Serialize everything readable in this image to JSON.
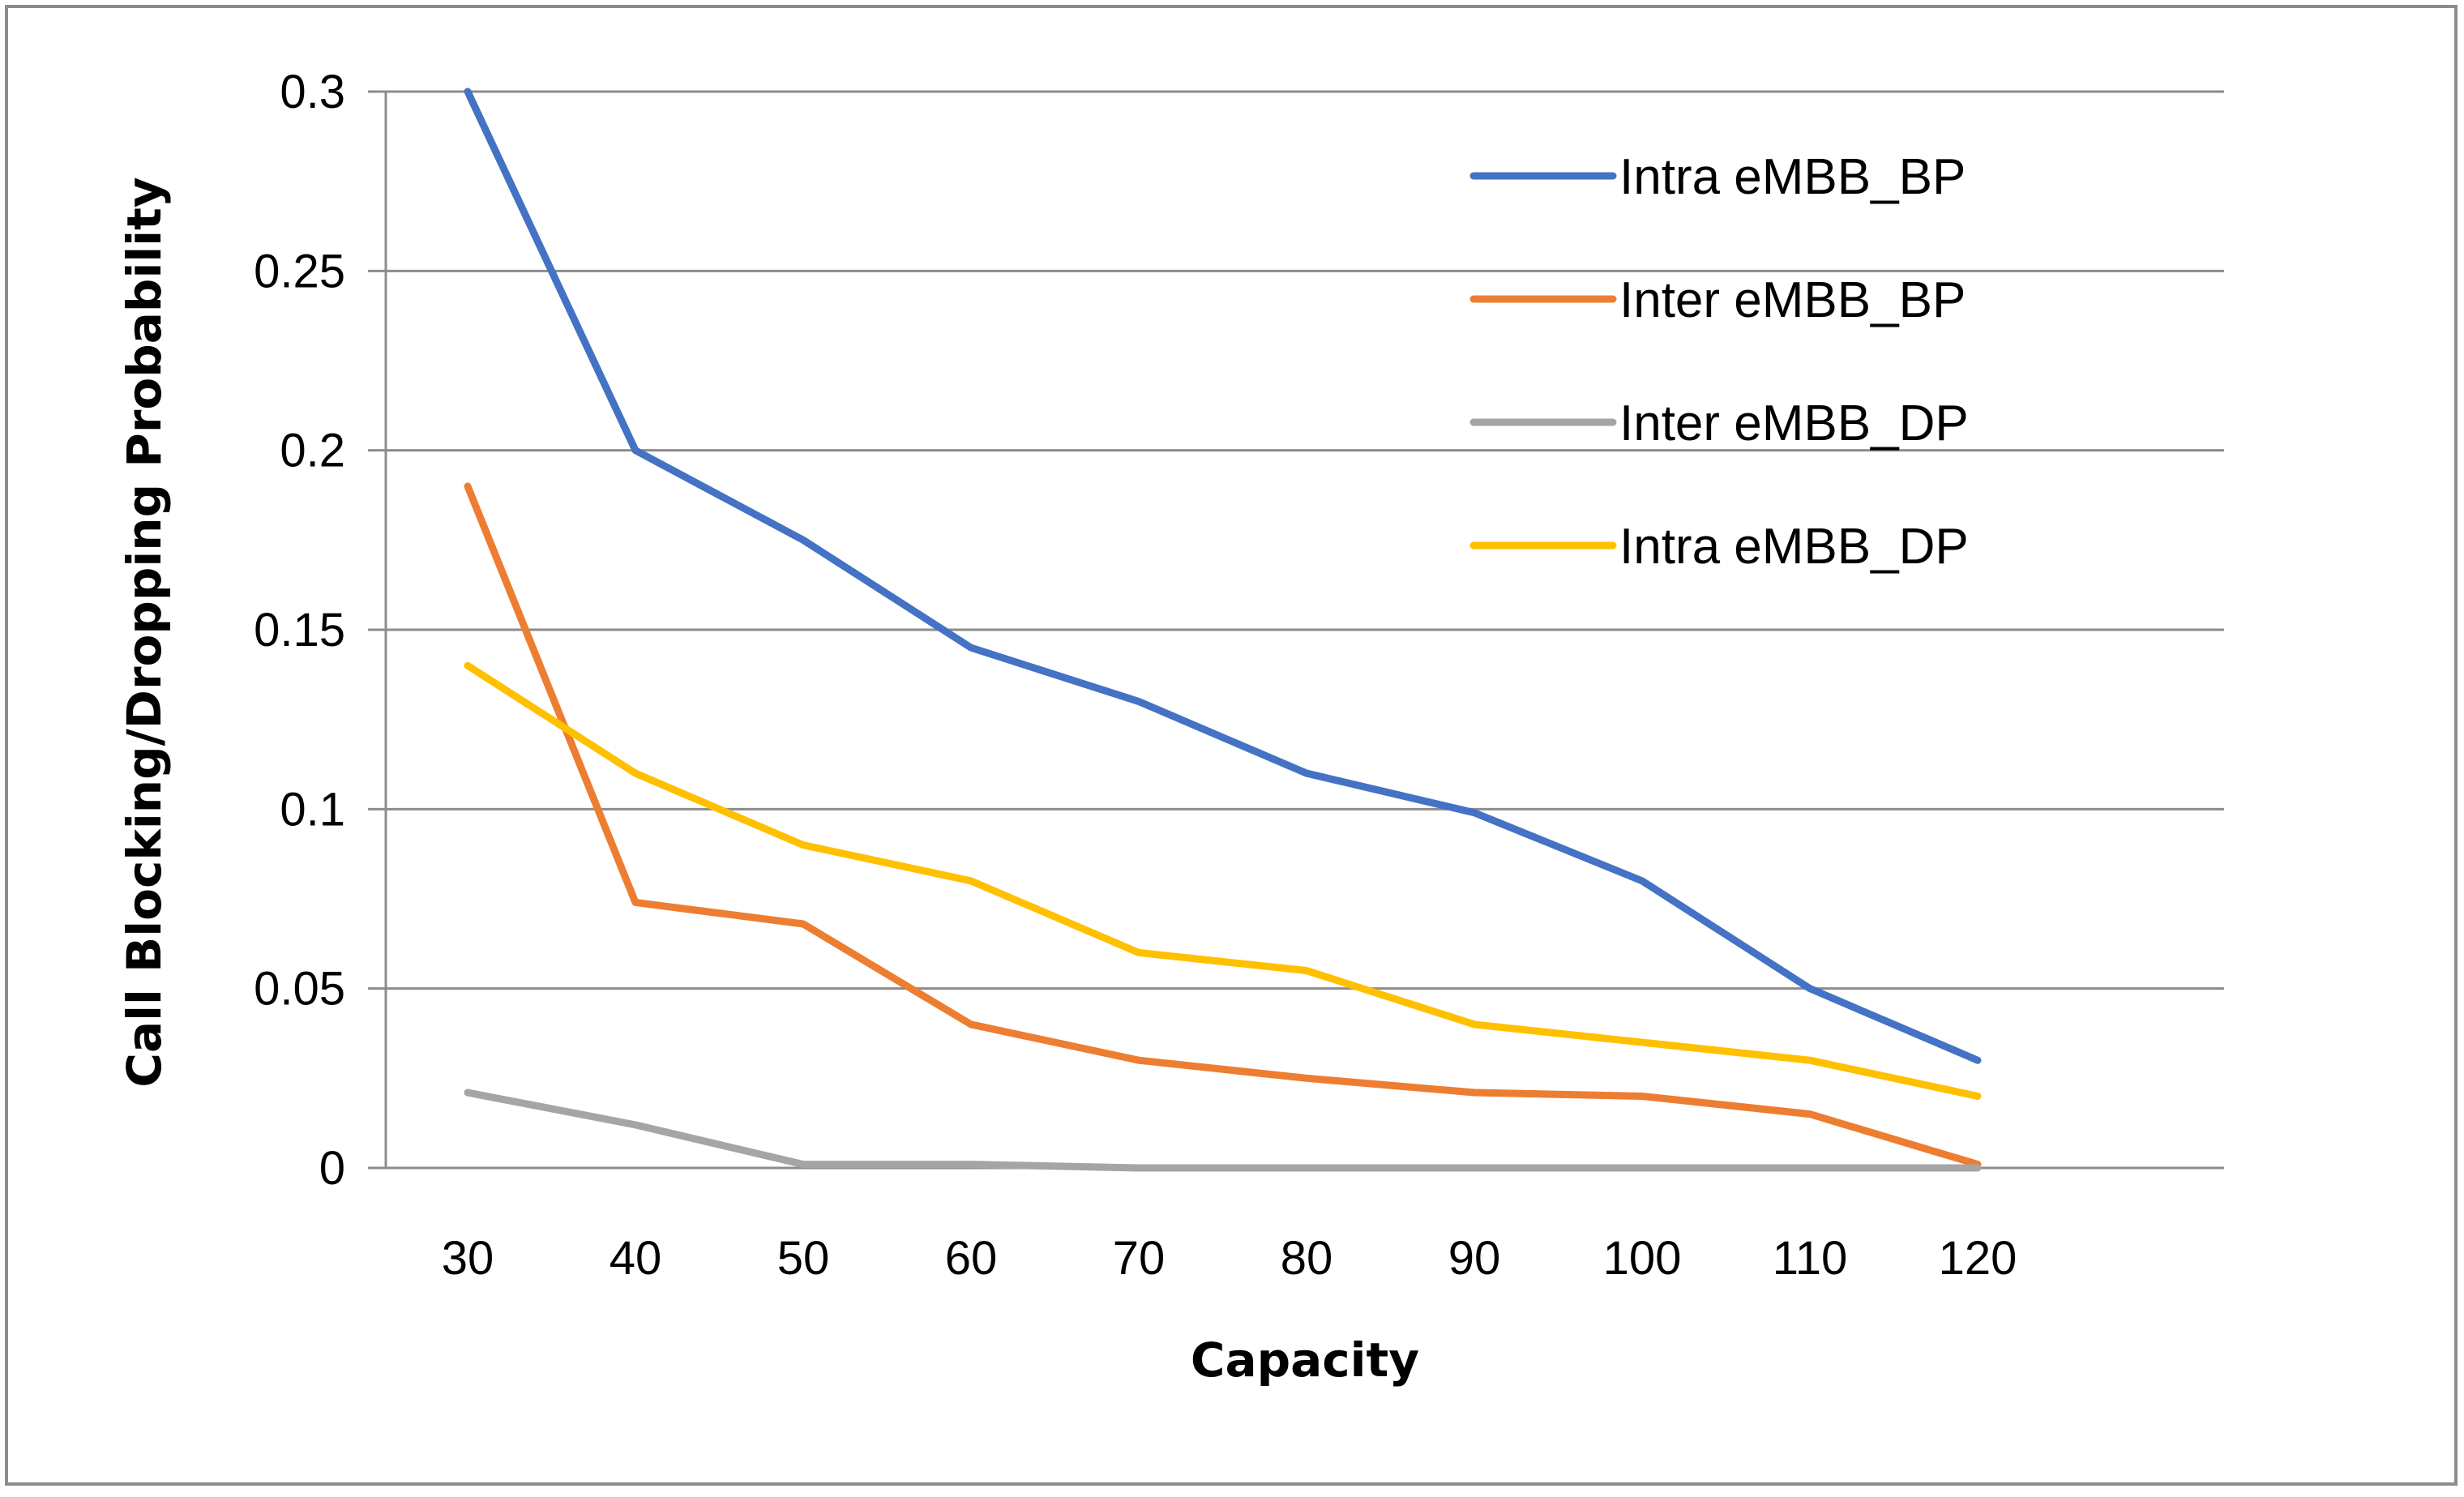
{
  "chart_data": {
    "type": "line",
    "title": "",
    "xlabel": "Capacity",
    "ylabel": "Call Blocking/Dropping Probability",
    "categories": [
      "30",
      "40",
      "50",
      "60",
      "70",
      "80",
      "90",
      "100",
      "110",
      "120"
    ],
    "ylim": [
      0,
      0.3
    ],
    "yticks": [
      {
        "value": 0,
        "label": "0"
      },
      {
        "value": 0.05,
        "label": "0.05"
      },
      {
        "value": 0.1,
        "label": "0.1"
      },
      {
        "value": 0.15,
        "label": "0.15"
      },
      {
        "value": 0.2,
        "label": "0.2"
      },
      {
        "value": 0.25,
        "label": "0.25"
      },
      {
        "value": 0.3,
        "label": "0.3"
      }
    ],
    "grid": true,
    "legend_position": "top-right",
    "series": [
      {
        "name": "Intra eMBB_BP",
        "color": "#4472C4",
        "values": [
          0.3,
          0.2,
          0.175,
          0.145,
          0.13,
          0.11,
          0.099,
          0.08,
          0.05,
          0.03
        ]
      },
      {
        "name": "Inter eMBB_BP",
        "color": "#ED7D31",
        "values": [
          0.19,
          0.074,
          0.068,
          0.04,
          0.03,
          0.025,
          0.021,
          0.02,
          0.015,
          0.001
        ]
      },
      {
        "name": "Inter eMBB_DP",
        "color": "#A5A5A5",
        "values": [
          0.021,
          0.012,
          0.001,
          0.001,
          0.0,
          0.0,
          0.0,
          0.0,
          0.0,
          0.0
        ]
      },
      {
        "name": "Intra eMBB_DP",
        "color": "#FFC000",
        "values": [
          0.14,
          0.11,
          0.09,
          0.08,
          0.06,
          0.055,
          0.04,
          0.035,
          0.03,
          0.02
        ]
      }
    ]
  }
}
